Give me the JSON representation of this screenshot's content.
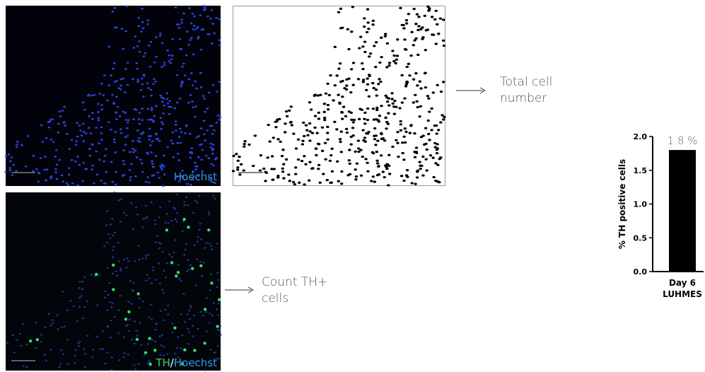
{
  "images": {
    "hoechst_label": "Hoechst",
    "merge_label_th": "TH",
    "merge_label_slash": "/",
    "merge_label_hoechst": "Hoechst"
  },
  "steps": {
    "total_cell_number": "Total cell\nnumber",
    "count_th_cells": "Count TH+\ncells"
  },
  "chart_data": {
    "type": "bar",
    "y_label": "% TH positive cells",
    "categories": [
      "Day 6\nLUHMES"
    ],
    "values": [
      1.8
    ],
    "value_labels": [
      "1.8 %"
    ],
    "color": "#000000",
    "ylim": [
      0,
      2.0
    ],
    "yticks": [
      {
        "value": 0,
        "label": "0.0"
      },
      {
        "value": 0.5,
        "label": "0.5"
      },
      {
        "value": 1.0,
        "label": "1.0"
      },
      {
        "value": 1.5,
        "label": "1.5"
      },
      {
        "value": 2.0,
        "label": "2.0"
      }
    ]
  }
}
